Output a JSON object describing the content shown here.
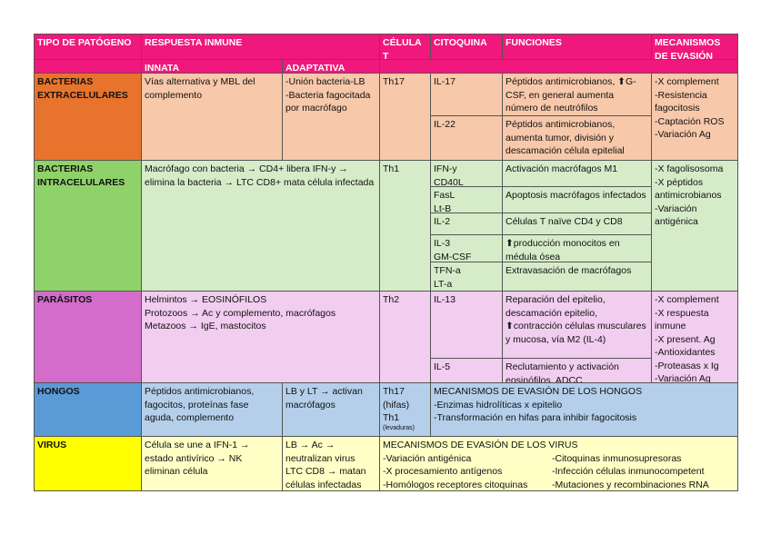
{
  "header": [
    "TIPO DE PATÓGENO",
    "RESPUESTA INMUNE",
    "CÉLULA T",
    "CITOQUINA",
    "FUNCIONES",
    "MECANISMOS DE EVASIÓN"
  ],
  "subheader": [
    "INNATA",
    "ADAPTATIVA"
  ],
  "rows": [
    {
      "pathogen": "BACTERIAS EXTRACELULARES",
      "innate": "Vías alternativa y MBL del complemento",
      "adaptive": "-Unión bacteria-LB\n-Bacteria fagocitada por macrófago",
      "cell": "Th17",
      "cytokines": [
        {
          "name": "IL-17",
          "function": "Péptidos antimicrobianos, ⬆G-CSF, en general aumenta número de neutrófilos"
        },
        {
          "name": "IL-22",
          "function": "Péptidos antimicrobianos, aumenta tumor, división y descamación célula epitelial"
        }
      ],
      "evasion": "-X complement\n-Resistencia fagocitosis\n-Captación ROS\n-Variación Ag"
    },
    {
      "pathogen": "BACTERIAS INTRACELULARES",
      "response": "Macrófago con bacteria → CD4+ libera IFN-y → elimina la bacteria → LTC CD8+ mata célula infectada",
      "cell": "Th1",
      "cytokines": [
        {
          "name": "IFN-y\nCD40L",
          "function": "Activación macrófagos M1"
        },
        {
          "name": "FasL\nLt-B",
          "function": "Apoptosis macrófagos infectados"
        },
        {
          "name": "IL-2",
          "function": "Células T naïve CD4 y CD8"
        },
        {
          "name": "IL-3\nGM-CSF",
          "function": "⬆producción monocitos en médula ósea"
        },
        {
          "name": "TFN-a\nLT-a",
          "function": "Extravasación de macrófagos"
        }
      ],
      "evasion": "-X fagolisosoma\n-X péptidos antimicrobianos\n-Variación antigénica"
    },
    {
      "pathogen": "PARÁSITOS",
      "response": "Helmintos → EOSINÓFILOS\nProtozoos → Ac y complemento, macrófagos\nMetazoos → IgE, mastocitos",
      "cell": "Th2",
      "cytokines": [
        {
          "name": "IL-13",
          "function": "Reparación del epitelio, descamación epitelio, ⬆contracción células musculares y mucosa, vía M2 (IL-4)"
        },
        {
          "name": "IL-5",
          "function": "Reclutamiento y activación eosinófilos, ADCC"
        }
      ],
      "evasion": "-X complement\n-X respuesta inmune\n-X present. Ag\n-Antioxidantes\n-Proteasas x Ig\n-Variación Ag"
    },
    {
      "pathogen": "HONGOS",
      "innate": "Péptidos antimicrobianos, fagocitos, proteínas fase aguda, complemento",
      "adaptive": "LB y LT → activan macrófagos",
      "cell": "Th17\n(hifas)\nTh1",
      "cell_note": "(levaduras)",
      "mechanisms": {
        "title": "MECANISMOS DE EVASIÓN DE LOS HONGOS",
        "items": [
          "-Enzimas hidrolíticas x epitelio",
          "-Transformación en hifas para inhibir fagocitosis"
        ]
      }
    },
    {
      "pathogen": "VIRUS",
      "innate": "Célula se une a IFN-1 → estado antivírico → NK eliminan célula",
      "adaptive": "LB → Ac → neutralizan virus\nLTC CD8 → matan células infectadas",
      "mechanisms": {
        "title": "MECANISMOS DE EVASIÓN DE LOS VIRUS",
        "items": [
          "-Variación antigénica",
          "-X procesamiento antígenos",
          "-Homólogos receptores citoquinas",
          "-Citoquinas inmunosupresoras",
          "-Infección células inmunocompetent",
          "-Mutaciones y recombinaciones RNA"
        ]
      }
    }
  ]
}
